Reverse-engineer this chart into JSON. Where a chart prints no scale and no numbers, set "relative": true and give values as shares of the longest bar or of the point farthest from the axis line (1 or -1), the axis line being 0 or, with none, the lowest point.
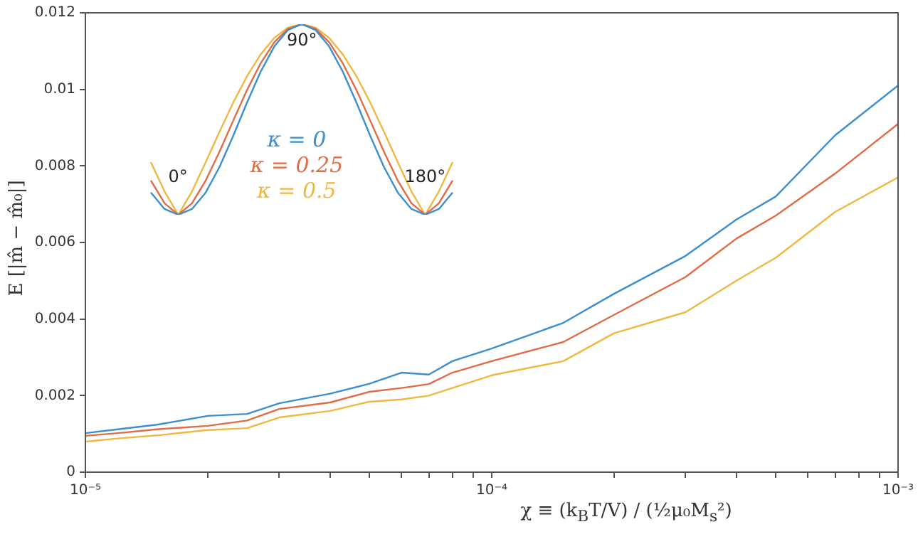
{
  "chart_data": [
    {
      "type": "line",
      "xlabel": "χ ≡ (k$_{B}$T/V) / (½μ₀M$_{s}$²)",
      "ylabel": "E [|m̂ − m̂₀|]",
      "x": [
        1e-05,
        1.2e-05,
        1.5e-05,
        2e-05,
        2.5e-05,
        3e-05,
        4e-05,
        5e-05,
        6e-05,
        7e-05,
        8e-05,
        0.0001,
        0.00015,
        0.0002,
        0.0003,
        0.0004,
        0.0005,
        0.0007,
        0.001
      ],
      "series": [
        {
          "name": "κ = 0",
          "color": "#3b8fd0",
          "values": [
            0.00102,
            0.00112,
            0.00124,
            0.00147,
            0.00152,
            0.0018,
            0.00205,
            0.00231,
            0.0026,
            0.00255,
            0.0029,
            0.00323,
            0.0039,
            0.00466,
            0.00565,
            0.0066,
            0.0072,
            0.0088,
            0.0101
          ]
        },
        {
          "name": "κ = 0.25",
          "color": "#e06b45",
          "values": [
            0.00095,
            0.00102,
            0.00112,
            0.00121,
            0.00135,
            0.00165,
            0.00182,
            0.0021,
            0.0022,
            0.0023,
            0.0026,
            0.0029,
            0.0034,
            0.00411,
            0.0051,
            0.0061,
            0.0067,
            0.0078,
            0.0091
          ]
        },
        {
          "name": "κ = 0.5",
          "color": "#f0b840",
          "values": [
            0.0008,
            0.00088,
            0.00096,
            0.0011,
            0.00115,
            0.00143,
            0.0016,
            0.00184,
            0.0019,
            0.002,
            0.0022,
            0.00253,
            0.0029,
            0.00363,
            0.00418,
            0.005,
            0.0056,
            0.0068,
            0.0077
          ]
        }
      ],
      "log": "x",
      "xlim": [
        1e-05,
        0.001
      ],
      "xticks": [
        {
          "value": 1e-05,
          "label": "10⁻⁵"
        },
        {
          "value": 2e-05,
          "label": null
        },
        {
          "value": 3e-05,
          "label": null
        },
        {
          "value": 4e-05,
          "label": null
        },
        {
          "value": 5e-05,
          "label": null
        },
        {
          "value": 6e-05,
          "label": null
        },
        {
          "value": 7e-05,
          "label": null
        },
        {
          "value": 8e-05,
          "label": null
        },
        {
          "value": 9e-05,
          "label": null
        },
        {
          "value": 0.0001,
          "label": "10⁻⁴"
        },
        {
          "value": 0.0002,
          "label": null
        },
        {
          "value": 0.0003,
          "label": null
        },
        {
          "value": 0.0004,
          "label": null
        },
        {
          "value": 0.0005,
          "label": null
        },
        {
          "value": 0.0006,
          "label": null
        },
        {
          "value": 0.0007,
          "label": null
        },
        {
          "value": 0.0008,
          "label": null
        },
        {
          "value": 0.0009,
          "label": null
        },
        {
          "value": 0.001,
          "label": "10⁻³"
        }
      ],
      "ylim": [
        0,
        0.012
      ],
      "yticks": [
        0,
        0.002,
        0.004,
        0.006,
        0.008,
        0.01,
        0.012
      ],
      "grid": false,
      "legend": "top left",
      "marker": "none",
      "line_style": "solid"
    },
    {
      "type": "line",
      "relative": true,
      "annotations": [
        "0°",
        "90°",
        "180°"
      ],
      "categories": [
        null,
        null,
        null,
        null,
        null,
        null,
        null,
        null,
        null,
        null,
        null,
        null,
        null,
        null,
        null,
        null,
        null,
        null,
        null,
        null,
        null,
        null,
        null
      ],
      "series": [
        {
          "color": "#3b8fd0",
          "values": [
            0.117,
            0.03,
            0,
            0.03,
            0.117,
            0.25,
            0.413,
            0.587,
            0.75,
            0.883,
            0.97,
            1,
            0.97,
            0.883,
            0.75,
            0.587,
            0.413,
            0.25,
            0.117,
            0.03,
            0,
            0.03,
            0.117
          ]
        },
        {
          "color": "#e06b45",
          "values": [
            0.18,
            0.06,
            0,
            0.06,
            0.18,
            0.33,
            0.493,
            0.653,
            0.794,
            0.905,
            0.976,
            1,
            0.976,
            0.905,
            0.794,
            0.653,
            0.493,
            0.33,
            0.18,
            0.06,
            0,
            0.06,
            0.18
          ]
        },
        {
          "color": "#f0b840",
          "values": [
            0.276,
            0.122,
            0,
            0.122,
            0.276,
            0.435,
            0.588,
            0.726,
            0.841,
            0.928,
            0.982,
            1,
            0.982,
            0.928,
            0.841,
            0.726,
            0.588,
            0.435,
            0.276,
            0.122,
            0,
            0.122,
            0.276
          ]
        }
      ],
      "marker": "none",
      "line_style": "solid"
    }
  ]
}
